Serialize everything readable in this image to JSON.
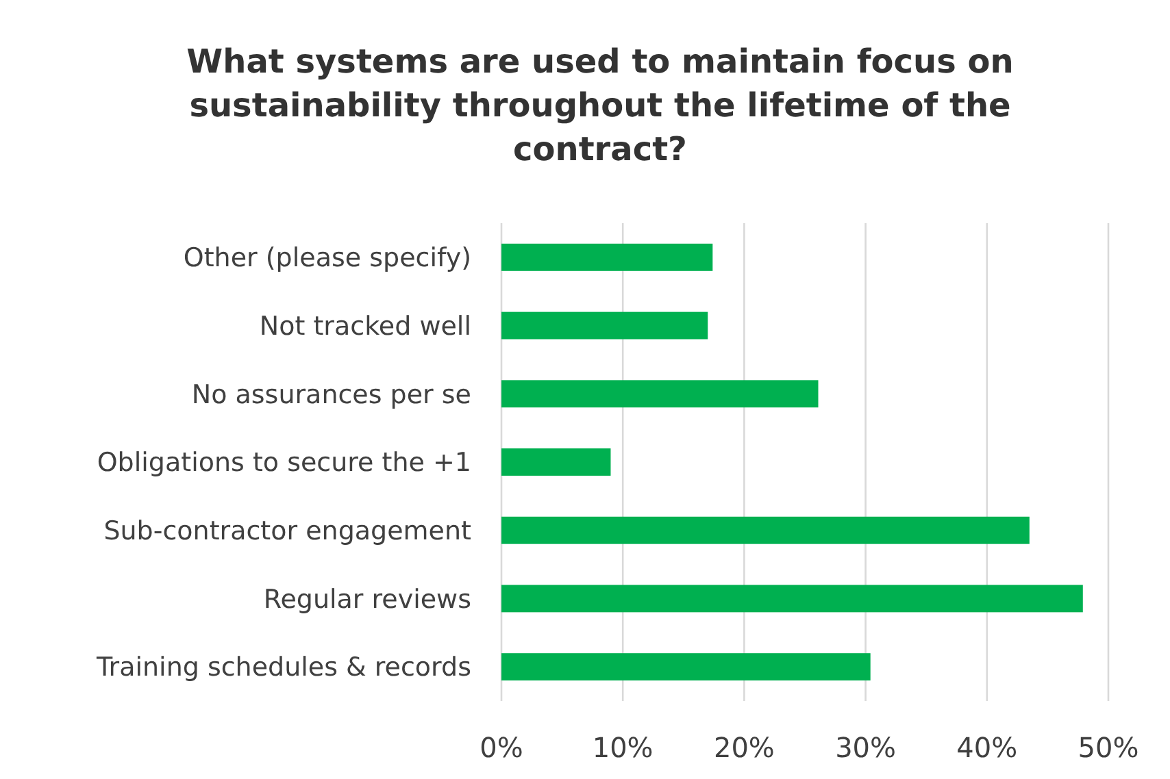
{
  "chart_data": {
    "type": "bar",
    "orientation": "horizontal",
    "title": "What systems are used to maintain focus on sustainability throughout the lifetime of the contract?",
    "categories": [
      "Other (please specify)",
      "Not tracked well",
      "No assurances per se",
      "Obligations to secure the +1",
      "Sub-contractor engagement",
      "Regular reviews",
      "Training schedules & records"
    ],
    "values": [
      17.4,
      17.0,
      26.1,
      9.0,
      43.5,
      47.9,
      30.4
    ],
    "color": "#00b050",
    "xlim": [
      0,
      50
    ],
    "xticks": [
      {
        "value": 0,
        "label": "0%"
      },
      {
        "value": 10,
        "label": "10%"
      },
      {
        "value": 20,
        "label": "20%"
      },
      {
        "value": 30,
        "label": "30%"
      },
      {
        "value": 40,
        "label": "40%"
      },
      {
        "value": 50,
        "label": "50%"
      }
    ],
    "grid": "x"
  }
}
